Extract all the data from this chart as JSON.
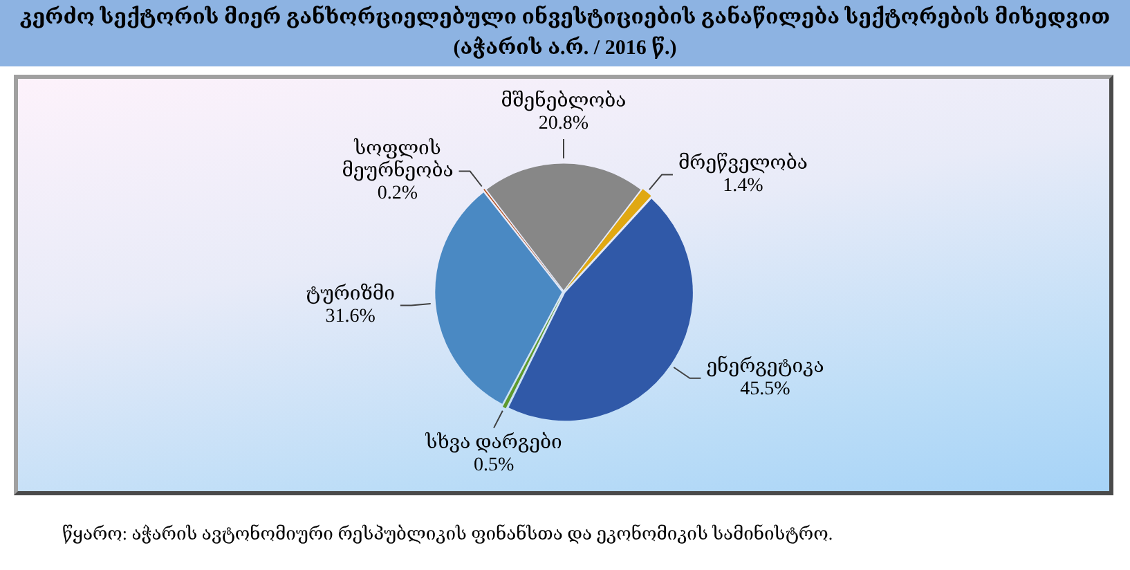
{
  "chart_data": {
    "type": "pie",
    "title": "კერძო სექტორის მიერ განხორციელებული ინვესტიციების განაწილება სექტორების მიხედვით",
    "subtitle": "(აჭარის ა.რ. / 2016 წ.)",
    "categories": [
      "მშენებლობა",
      "მრეწველობა",
      "ენერგეტიკა",
      "სხვა დარგები",
      "ტურიზმი",
      "სოფლის მეურნეობა"
    ],
    "values": [
      20.8,
      1.4,
      45.5,
      0.5,
      31.6,
      0.2
    ],
    "colors": [
      "#878787",
      "#e0a812",
      "#3059a8",
      "#5e9a2c",
      "#4a89c3",
      "#b04a14"
    ],
    "value_labels": [
      "20.8%",
      "1.4%",
      "45.5%",
      "0.5%",
      "31.6%",
      "0.2%"
    ],
    "annotations": [
      "წყარო: აჭარის ავტონომიური რესპუბლიკის ფინანსთა და ეკონომიკის სამინისტრო."
    ]
  }
}
